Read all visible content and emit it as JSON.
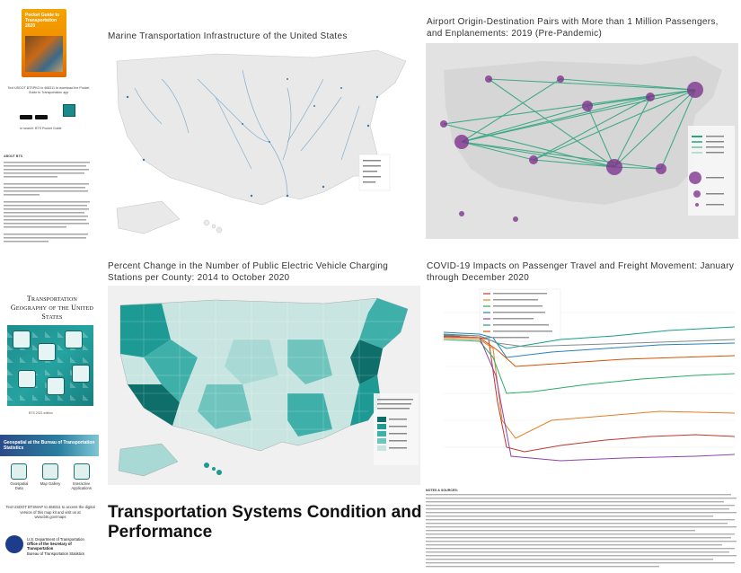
{
  "sidebar": {
    "guide_cover_title": "Pocket Guide to Transportation 2020",
    "guide_text": "Text USDOT BTSPKG to 468311 to download the Pocket Guide to Transportation app",
    "search_text": "or search: BTS Pocket Guide",
    "about_heading": "ABOUT BTS",
    "transportation_geography_title": "Transportation Geography of the United States",
    "art_caption": "BTS 2021 edition",
    "banner_text": "Geospatial at the Bureau of Transportation Statistics",
    "icons": [
      {
        "name": "Geospatial Data",
        "icon": "map-layers-icon"
      },
      {
        "name": "Map Gallery",
        "icon": "map-gallery-icon"
      },
      {
        "name": "Interactive Applications",
        "icon": "interactive-app-icon"
      }
    ],
    "visit_text": "Text USDOT BTSMAP to 468311 to access the digital version of this map kit and visit us at www.bts.gov/maps",
    "agency_line1": "U.S. Department of Transportation",
    "agency_line2": "Office of the Secretary of Transportation",
    "agency_line3": "Bureau of Transportation Statistics"
  },
  "panels": {
    "marine_title": "Marine Transportation Infrastructure of the United States",
    "airport_title": "Airport Origin-Destination Pairs with More than 1 Million Passengers, and Enplanements: 2019 (Pre-Pandemic)",
    "ev_title": "Percent Change in the Number of Public Electric Vehicle Charging Stations per County: 2014 to October 2020",
    "covid_title": "COVID-19 Impacts on Passenger Travel and Freight Movement: January through December 2020"
  },
  "main_title": "Transportation Systems Condition and Performance",
  "notes_heading": "NOTES & SOURCES:",
  "colors": {
    "teal": "#1d9a94",
    "teal_dark": "#0d6e6a",
    "purple": "#9a3aa0",
    "land": "#e6e6e6",
    "water": "#ffffff",
    "dot_blue": "#1e3c8a"
  }
}
